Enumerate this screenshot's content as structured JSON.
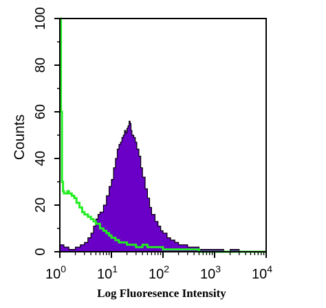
{
  "chart_data": {
    "type": "area",
    "title": "",
    "xlabel": "Log Fluoresence Intensity",
    "ylabel": "Counts",
    "x_scale": "log",
    "xlim": [
      1,
      10000
    ],
    "ylim": [
      0,
      100
    ],
    "y_ticks": [
      "0",
      "20",
      "40",
      "60",
      "80",
      "100"
    ],
    "x_ticks": [
      {
        "base": "10",
        "exp": "0"
      },
      {
        "base": "10",
        "exp": "1"
      },
      {
        "base": "10",
        "exp": "2"
      },
      {
        "base": "10",
        "exp": "3"
      },
      {
        "base": "10",
        "exp": "4"
      }
    ],
    "grid": false,
    "legend": "none",
    "series": [
      {
        "style": "filled",
        "color": "#6a00c8",
        "x": [
          1.0,
          1.2,
          1.5,
          2.0,
          2.5,
          3.0,
          3.5,
          4.0,
          4.5,
          5.0,
          5.5,
          6.0,
          7.0,
          8.0,
          9.0,
          10.0,
          11.0,
          12.0,
          13.0,
          14.0,
          15.0,
          16.0,
          17.0,
          18.0,
          19.0,
          20.0,
          21.0,
          22.0,
          23.0,
          24.0,
          25.0,
          27.0,
          29.0,
          31.0,
          34.0,
          37.0,
          40.0,
          45.0,
          50.0,
          55.0,
          60.0,
          70.0,
          80.0,
          90.0,
          100.0,
          120.0,
          140.0,
          170.0,
          200.0,
          250.0,
          300.0,
          400.0,
          500.0,
          700.0,
          1000.0,
          1500.0,
          2000.0,
          3000.0,
          5000.0,
          10000.0
        ],
        "y": [
          3,
          2,
          1,
          2,
          3,
          4,
          6,
          8,
          11,
          14,
          16,
          17,
          20,
          24,
          28,
          31,
          36,
          40,
          44,
          46,
          47,
          49,
          50,
          52,
          51,
          53,
          54,
          56,
          55,
          52,
          50,
          49,
          47,
          44,
          41,
          36,
          32,
          27,
          23,
          19,
          16,
          13,
          11,
          9,
          8,
          6,
          5,
          4,
          3,
          3,
          2,
          2,
          1,
          1,
          1,
          0,
          1,
          0,
          0,
          0
        ]
      },
      {
        "style": "line",
        "color": "#22ee22",
        "x": [
          1.0,
          1.05,
          1.1,
          1.15,
          1.2,
          1.3,
          1.4,
          1.5,
          1.7,
          1.9,
          2.1,
          2.4,
          2.7,
          3.0,
          3.5,
          4.0,
          4.5,
          5.0,
          6.0,
          7.0,
          8.0,
          9.0,
          10.0,
          12.0,
          14.0,
          17.0,
          20.0,
          25.0,
          30.0,
          40.0,
          50.0,
          60.0,
          80.0,
          100.0,
          150.0,
          200.0,
          300.0,
          500.0,
          1000.0,
          2000.0,
          5000.0,
          10000.0
        ],
        "y": [
          100,
          60,
          30,
          26,
          25,
          25,
          26,
          25,
          24,
          23,
          21,
          19,
          17,
          16,
          15,
          14,
          13,
          12,
          10,
          9,
          8,
          7,
          6,
          5,
          4,
          4,
          3,
          3,
          2,
          3,
          2,
          2,
          2,
          1,
          1,
          1,
          1,
          0,
          0,
          0,
          0,
          0
        ]
      }
    ]
  }
}
